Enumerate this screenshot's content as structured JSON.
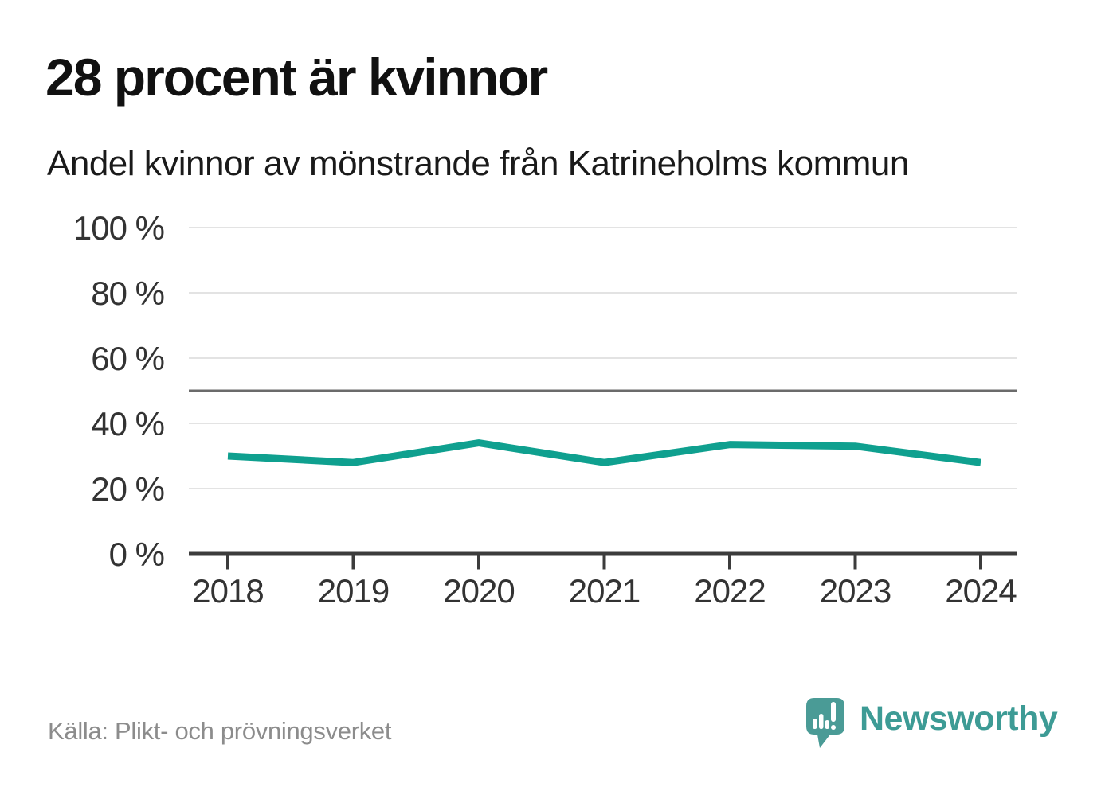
{
  "chart_data": {
    "type": "line",
    "title": "28 procent är kvinnor",
    "subtitle": "Andel kvinnor av mönstrande från Katrineholms kommun",
    "categories": [
      "2018",
      "2019",
      "2020",
      "2021",
      "2022",
      "2023",
      "2024"
    ],
    "series": [
      {
        "name": "Andel kvinnor av mönstrande",
        "values": [
          30,
          28,
          34,
          28,
          33.5,
          33,
          28
        ]
      }
    ],
    "unit": "%",
    "xlabel": "",
    "ylabel": "",
    "ylim": [
      0,
      100
    ],
    "yticks": [
      0,
      20,
      40,
      60,
      80,
      100
    ],
    "ytick_labels": [
      "0 %",
      "20 %",
      "40 %",
      "60 %",
      "80 %",
      "100 %"
    ],
    "reference_line": 50,
    "grid": true,
    "legend": "none"
  },
  "footer": {
    "source": "Källa: Plikt- och prövningsverket",
    "brand": "Newsworthy"
  },
  "colors": {
    "line": "#0fa08f",
    "grid": "#e3e3e3",
    "reference": "#6b6b6b",
    "axis": "#3c3c3c",
    "tick_text": "#333333",
    "title_text": "#111111",
    "source_text": "#8c8c8c",
    "logo_bubble": "#4a9b96",
    "brand_text": "#3d9b95"
  }
}
